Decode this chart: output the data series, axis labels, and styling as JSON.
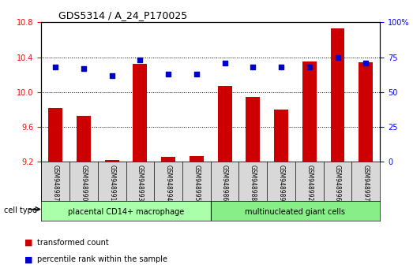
{
  "title": "GDS5314 / A_24_P170025",
  "samples": [
    "GSM948987",
    "GSM948990",
    "GSM948991",
    "GSM948993",
    "GSM948994",
    "GSM948995",
    "GSM948986",
    "GSM948988",
    "GSM948989",
    "GSM948992",
    "GSM948996",
    "GSM948997"
  ],
  "transformed_count": [
    9.82,
    9.73,
    9.22,
    10.32,
    9.26,
    9.27,
    10.07,
    9.94,
    9.8,
    10.35,
    10.73,
    10.34
  ],
  "percentile_rank": [
    68,
    67,
    62,
    73,
    63,
    63,
    71,
    68,
    68,
    68,
    75,
    71
  ],
  "groups": [
    {
      "label": "placental CD14+ macrophage",
      "start": 0,
      "end": 6,
      "color": "#aaffaa"
    },
    {
      "label": "multinucleated giant cells",
      "start": 6,
      "end": 12,
      "color": "#88ee88"
    }
  ],
  "ylim_left": [
    9.2,
    10.8
  ],
  "ylim_right": [
    0,
    100
  ],
  "yticks_left": [
    9.2,
    9.6,
    10.0,
    10.4,
    10.8
  ],
  "yticks_right": [
    0,
    25,
    50,
    75,
    100
  ],
  "bar_color": "#cc0000",
  "scatter_color": "#0000cc",
  "grid_color": "#000000",
  "bg_color": "#ffffff",
  "label_transformed": "transformed count",
  "label_percentile": "percentile rank within the sample",
  "cell_type_label": "cell type",
  "bar_width": 0.5
}
